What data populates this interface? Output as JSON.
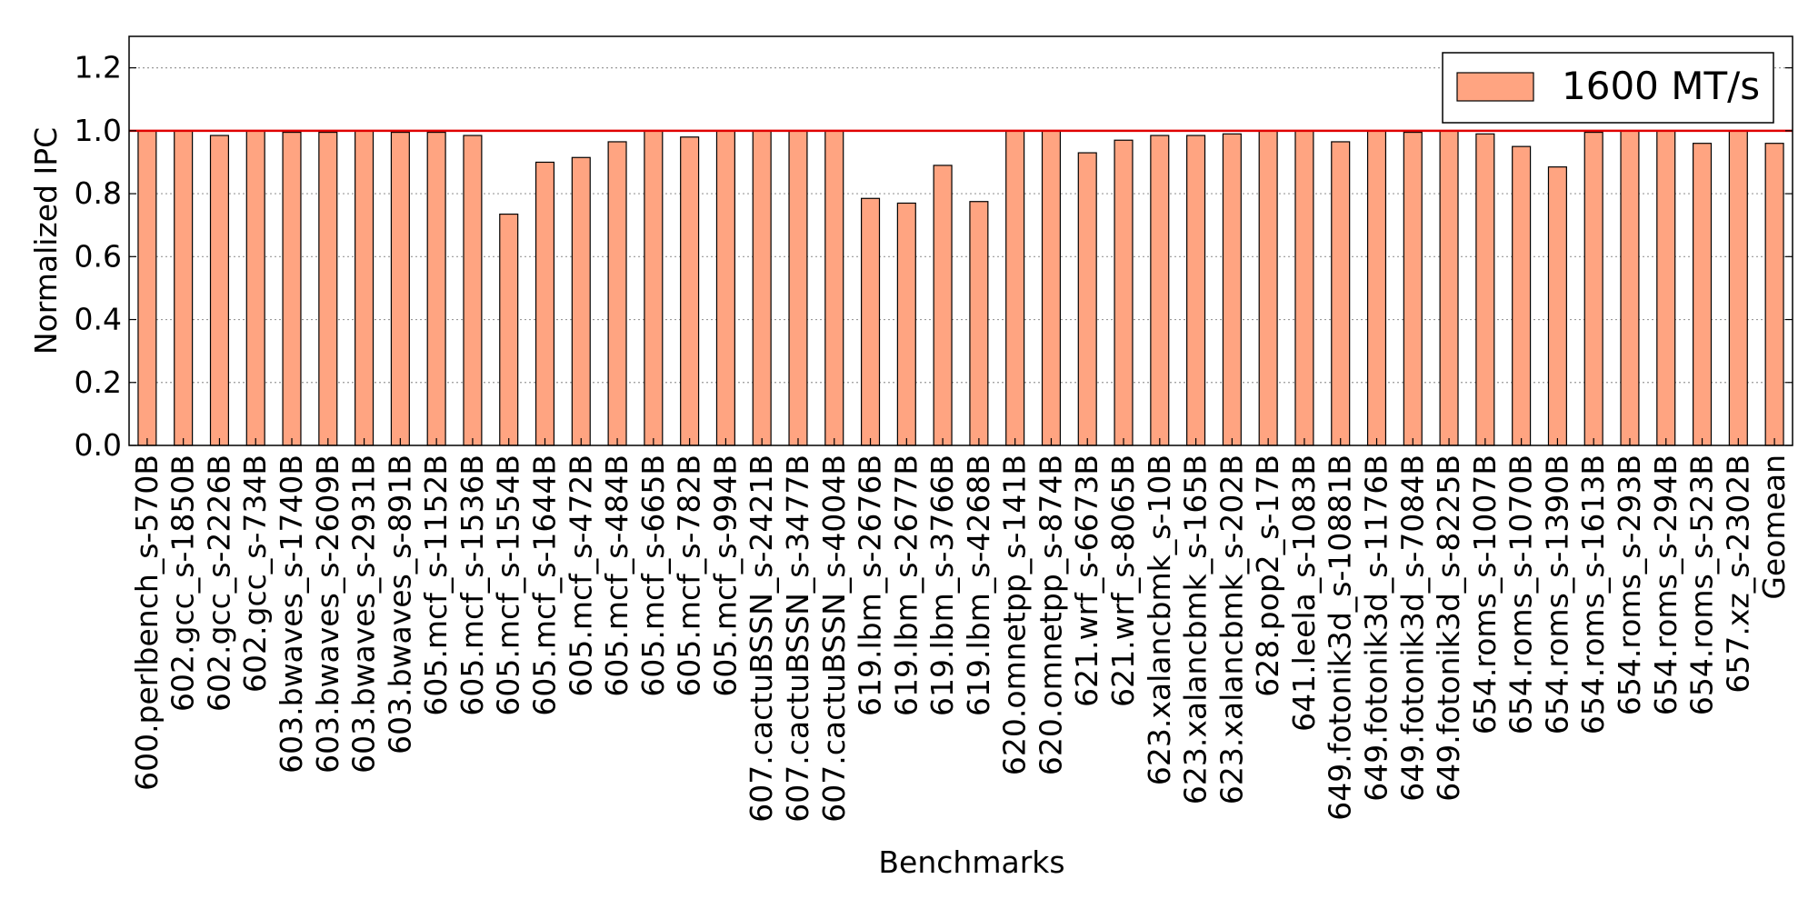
{
  "chart_data": {
    "type": "bar",
    "xlabel": "Benchmarks",
    "ylabel": "Normalized IPC",
    "ylim": [
      0.0,
      1.3
    ],
    "yticks": [
      "0.0",
      "0.2",
      "0.4",
      "0.6",
      "0.8",
      "1.0",
      "1.2"
    ],
    "grid": "horizontal dotted",
    "reference_line": 1.0,
    "legend_position": "top-right",
    "colors": {
      "bar_fill": "#FFA481",
      "bar_edge": "#000000",
      "reference_line": "#E00000",
      "grid": "#9A9A9A"
    },
    "categories": [
      "600.perlbench_s-570B",
      "602.gcc_s-1850B",
      "602.gcc_s-2226B",
      "602.gcc_s-734B",
      "603.bwaves_s-1740B",
      "603.bwaves_s-2609B",
      "603.bwaves_s-2931B",
      "603.bwaves_s-891B",
      "605.mcf_s-1152B",
      "605.mcf_s-1536B",
      "605.mcf_s-1554B",
      "605.mcf_s-1644B",
      "605.mcf_s-472B",
      "605.mcf_s-484B",
      "605.mcf_s-665B",
      "605.mcf_s-782B",
      "605.mcf_s-994B",
      "607.cactuBSSN_s-2421B",
      "607.cactuBSSN_s-3477B",
      "607.cactuBSSN_s-4004B",
      "619.lbm_s-2676B",
      "619.lbm_s-2677B",
      "619.lbm_s-3766B",
      "619.lbm_s-4268B",
      "620.omnetpp_s-141B",
      "620.omnetpp_s-874B",
      "621.wrf_s-6673B",
      "621.wrf_s-8065B",
      "623.xalancbmk_s-10B",
      "623.xalancbmk_s-165B",
      "623.xalancbmk_s-202B",
      "628.pop2_s-17B",
      "641.leela_s-1083B",
      "649.fotonik3d_s-10881B",
      "649.fotonik3d_s-1176B",
      "649.fotonik3d_s-7084B",
      "649.fotonik3d_s-8225B",
      "654.roms_s-1007B",
      "654.roms_s-1070B",
      "654.roms_s-1390B",
      "654.roms_s-1613B",
      "654.roms_s-293B",
      "654.roms_s-294B",
      "654.roms_s-523B",
      "657.xz_s-2302B",
      "Geomean"
    ],
    "series": [
      {
        "name": "1600 MT/s",
        "values": [
          1.0,
          1.0,
          0.985,
          1.0,
          0.995,
          0.995,
          1.0,
          0.995,
          0.995,
          0.985,
          0.735,
          0.9,
          0.915,
          0.965,
          1.0,
          0.98,
          1.0,
          1.0,
          1.0,
          1.0,
          0.785,
          0.77,
          0.89,
          0.775,
          1.0,
          1.0,
          0.93,
          0.97,
          0.985,
          0.985,
          0.99,
          1.0,
          1.0,
          0.965,
          1.0,
          0.995,
          1.0,
          0.99,
          0.95,
          0.885,
          0.995,
          1.0,
          1.0,
          0.96,
          1.0,
          0.96
        ]
      }
    ]
  }
}
